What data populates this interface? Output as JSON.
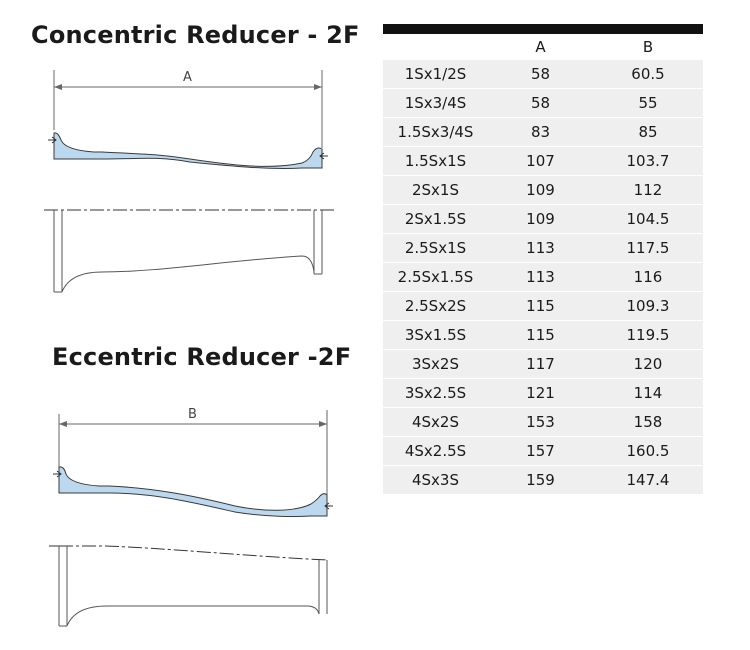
{
  "concentric": {
    "title": "Concentric Reducer - 2F",
    "dimension_label": "A"
  },
  "eccentric": {
    "title": "Eccentric Reducer -2F",
    "dimension_label": "B"
  },
  "spec_table": {
    "headers": [
      "",
      "A",
      "B"
    ],
    "rows": [
      [
        "1Sx1/2S",
        "58",
        "60.5"
      ],
      [
        "1Sx3/4S",
        "58",
        "55"
      ],
      [
        "1.5Sx3/4S",
        "83",
        "85"
      ],
      [
        "1.5Sx1S",
        "107",
        "103.7"
      ],
      [
        "2Sx1S",
        "109",
        "112"
      ],
      [
        "2Sx1.5S",
        "109",
        "104.5"
      ],
      [
        "2.5Sx1S",
        "113",
        "117.5"
      ],
      [
        "2.5Sx1.5S",
        "113",
        "116"
      ],
      [
        "2.5Sx2S",
        "115",
        "109.3"
      ],
      [
        "3Sx1.5S",
        "115",
        "119.5"
      ],
      [
        "3Sx2S",
        "117",
        "120"
      ],
      [
        "3Sx2.5S",
        "121",
        "114"
      ],
      [
        "4Sx2S",
        "153",
        "158"
      ],
      [
        "4Sx2.5S",
        "157",
        "160.5"
      ],
      [
        "4Sx3S",
        "159",
        "147.4"
      ]
    ]
  },
  "colors": {
    "section_fill": "#bcd8ee",
    "outline": "#555555",
    "header_bar": "#111111",
    "row_bg": "#efefef"
  }
}
